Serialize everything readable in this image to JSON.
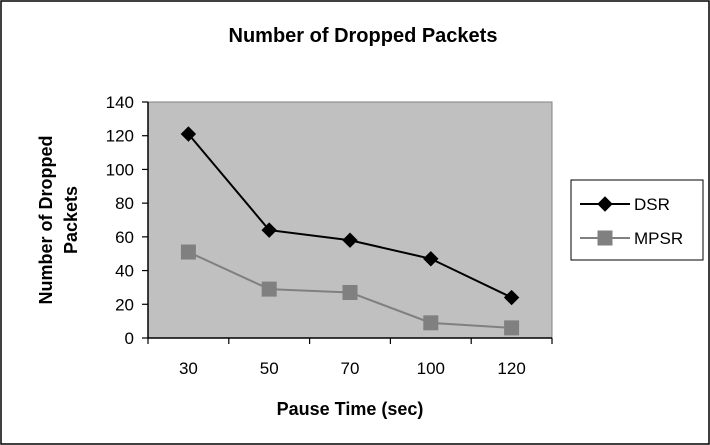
{
  "chart_data": {
    "type": "line",
    "title": "Number of Dropped Packets",
    "xlabel": "Pause Time (sec)",
    "ylabel_lines": [
      "Number of Dropped",
      "Packets"
    ],
    "categories": [
      "30",
      "50",
      "70",
      "100",
      "120"
    ],
    "ylim": [
      0,
      140
    ],
    "yticks": [
      0,
      20,
      40,
      60,
      80,
      100,
      120,
      140
    ],
    "grid": false,
    "legend_position": "right",
    "plot_background": "#c0c0c0",
    "series": [
      {
        "name": "DSR",
        "values": [
          121,
          64,
          58,
          47,
          24
        ],
        "color": "#000000",
        "marker": "diamond"
      },
      {
        "name": "MPSR",
        "values": [
          51,
          29,
          27,
          9,
          6
        ],
        "color": "#808080",
        "marker": "square"
      }
    ]
  }
}
